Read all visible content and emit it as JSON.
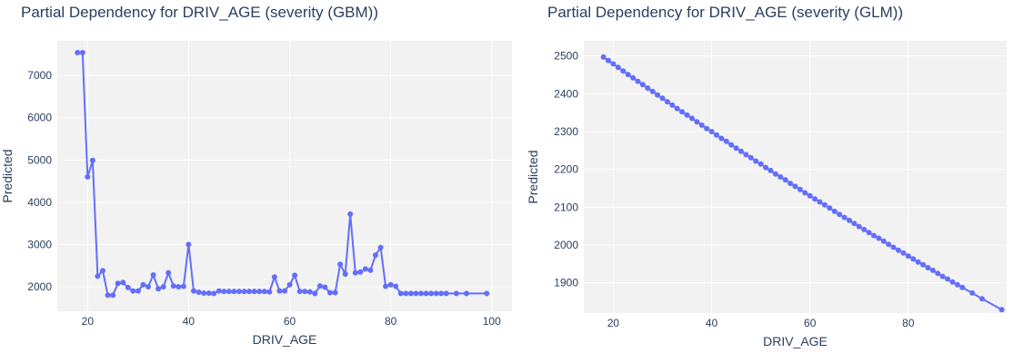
{
  "chart_data": [
    {
      "type": "line",
      "title": "Partial Dependency for DRIV_AGE (severity (GBM))",
      "xlabel": "DRIV_AGE",
      "ylabel": "Predicted",
      "xlim": [
        14,
        104
      ],
      "ylim": [
        1420,
        7820
      ],
      "xticks": [
        20,
        40,
        60,
        80,
        100
      ],
      "yticks": [
        2000,
        3000,
        4000,
        5000,
        6000,
        7000
      ],
      "grid": true,
      "color": "#636efa",
      "x": [
        18,
        19,
        20,
        21,
        22,
        23,
        24,
        25,
        26,
        27,
        28,
        29,
        30,
        31,
        32,
        33,
        34,
        35,
        36,
        37,
        38,
        39,
        40,
        41,
        42,
        43,
        44,
        45,
        46,
        47,
        48,
        49,
        50,
        51,
        52,
        53,
        54,
        55,
        56,
        57,
        58,
        59,
        60,
        61,
        62,
        63,
        64,
        65,
        66,
        67,
        68,
        69,
        70,
        71,
        72,
        73,
        74,
        75,
        76,
        77,
        78,
        79,
        80,
        81,
        82,
        83,
        84,
        85,
        86,
        87,
        88,
        89,
        90,
        91,
        93,
        95,
        99
      ],
      "y": [
        7540,
        7540,
        4600,
        4990,
        2250,
        2380,
        1800,
        1800,
        2080,
        2100,
        1980,
        1900,
        1900,
        2050,
        2000,
        2280,
        1950,
        2000,
        2330,
        2020,
        2000,
        2010,
        3000,
        1900,
        1870,
        1850,
        1850,
        1840,
        1900,
        1890,
        1890,
        1890,
        1890,
        1890,
        1890,
        1890,
        1890,
        1890,
        1880,
        2230,
        1900,
        1900,
        2050,
        2270,
        1890,
        1890,
        1880,
        1840,
        2020,
        1990,
        1860,
        1860,
        2530,
        2300,
        3720,
        2330,
        2350,
        2420,
        2390,
        2750,
        2930,
        2010,
        2050,
        2010,
        1840,
        1840,
        1840,
        1840,
        1840,
        1840,
        1840,
        1840,
        1840,
        1840,
        1840,
        1840,
        1840
      ]
    },
    {
      "type": "line",
      "title": "Partial Dependency for DRIV_AGE (severity (GLM))",
      "xlabel": "DRIV_AGE",
      "ylabel": "Predicted",
      "xlim": [
        14,
        100
      ],
      "ylim": [
        1820,
        2540
      ],
      "xticks": [
        20,
        40,
        60,
        80
      ],
      "yticks": [
        1900,
        2000,
        2100,
        2200,
        2300,
        2400,
        2500
      ],
      "grid": true,
      "color": "#636efa",
      "x": [
        18,
        19,
        20,
        21,
        22,
        23,
        24,
        25,
        26,
        27,
        28,
        29,
        30,
        31,
        32,
        33,
        34,
        35,
        36,
        37,
        38,
        39,
        40,
        41,
        42,
        43,
        44,
        45,
        46,
        47,
        48,
        49,
        50,
        51,
        52,
        53,
        54,
        55,
        56,
        57,
        58,
        59,
        60,
        61,
        62,
        63,
        64,
        65,
        66,
        67,
        68,
        69,
        70,
        71,
        72,
        73,
        74,
        75,
        76,
        77,
        78,
        79,
        80,
        81,
        82,
        83,
        84,
        85,
        86,
        87,
        88,
        89,
        90,
        91,
        93,
        95,
        99
      ],
      "y": [
        2497,
        2488,
        2479,
        2470,
        2460,
        2451,
        2442,
        2433,
        2424,
        2415,
        2406,
        2397,
        2388,
        2379,
        2370,
        2361,
        2352,
        2344,
        2335,
        2326,
        2317,
        2308,
        2300,
        2291,
        2282,
        2274,
        2265,
        2256,
        2248,
        2239,
        2231,
        2222,
        2214,
        2205,
        2197,
        2188,
        2180,
        2172,
        2163,
        2155,
        2147,
        2138,
        2130,
        2122,
        2114,
        2106,
        2098,
        2089,
        2081,
        2073,
        2065,
        2057,
        2049,
        2041,
        2033,
        2025,
        2018,
        2010,
        2002,
        1994,
        1986,
        1979,
        1971,
        1963,
        1955,
        1948,
        1940,
        1933,
        1925,
        1917,
        1910,
        1902,
        1895,
        1888,
        1873,
        1858,
        1829
      ]
    }
  ]
}
